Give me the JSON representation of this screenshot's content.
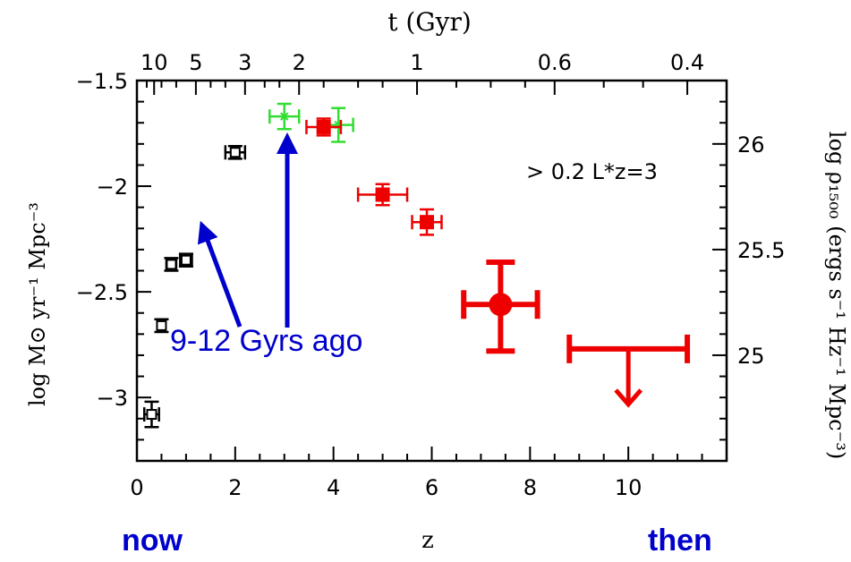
{
  "chart_data": {
    "type": "scatter",
    "title": "",
    "xlabel": "z",
    "ylabel": "log M⊙ yr⁻¹ Mpc⁻³",
    "ylabel_right": "log ρ₁₅₀₀ (ergs s⁻¹ Hz⁻¹ Mpc⁻³)",
    "xlabel_top": "t (Gyr)",
    "xlim": [
      0,
      12
    ],
    "ylim": [
      -3.3,
      -1.5
    ],
    "right_ylim": [
      24.5,
      26.3
    ],
    "x_ticks": [
      "0",
      "2",
      "4",
      "6",
      "8",
      "10"
    ],
    "y_ticks": [
      "-1.5",
      "-2",
      "-2.5",
      "-3"
    ],
    "right_ticks": [
      "26",
      "25.5",
      "25"
    ],
    "top_ticks": [
      {
        "label": "10",
        "z": 0.35
      },
      {
        "label": "5",
        "z": 1.2
      },
      {
        "label": "3",
        "z": 2.2
      },
      {
        "label": "2",
        "z": 3.3
      },
      {
        "label": "1",
        "z": 5.7
      },
      {
        "label": "0.6",
        "z": 8.5
      },
      {
        "label": "0.4",
        "z": 11.2
      }
    ],
    "annotation": "> 0.2 L*z=3",
    "series": [
      {
        "color": "#000000",
        "marker": "open-square",
        "points": [
          {
            "x": 0.3,
            "y": -3.08,
            "xerr": 0.15,
            "yerr": 0.06
          },
          {
            "x": 0.5,
            "y": -2.66,
            "xerr": 0.05,
            "yerr": 0.03
          },
          {
            "x": 0.7,
            "y": -2.37,
            "xerr": 0.1,
            "yerr": 0.03
          },
          {
            "x": 1.0,
            "y": -2.35,
            "xerr": 0.12,
            "yerr": 0.03
          },
          {
            "x": 2.0,
            "y": -1.84,
            "xerr": 0.2,
            "yerr": 0.03
          }
        ]
      },
      {
        "color": "#33dd33",
        "marker": "star",
        "points": [
          {
            "x": 3.0,
            "y": -1.67,
            "xerr": 0.3,
            "yerr": 0.06
          },
          {
            "x": 4.1,
            "y": -1.71,
            "xerr": 0.3,
            "yerr": 0.08
          }
        ]
      },
      {
        "color": "#ee0000",
        "marker": "filled-square",
        "points": [
          {
            "x": 3.8,
            "y": -1.72,
            "xerr": 0.35,
            "yerr": 0.04
          },
          {
            "x": 5.0,
            "y": -2.04,
            "xerr": 0.5,
            "yerr": 0.05
          },
          {
            "x": 5.9,
            "y": -2.17,
            "xerr": 0.3,
            "yerr": 0.06
          }
        ]
      },
      {
        "color": "#ee0000",
        "marker": "big-circle",
        "points": [
          {
            "x": 7.4,
            "y": -2.56,
            "xerr": 0.75,
            "yerr_up": 0.2,
            "yerr_down": 0.22
          }
        ]
      },
      {
        "color": "#ee0000",
        "marker": "upper-limit",
        "points": [
          {
            "x": 10.0,
            "y": -2.77,
            "xerr": 1.2
          }
        ]
      }
    ],
    "overlay_text": {
      "gyrs": "9-12 Gyrs ago",
      "now": "now",
      "then": "then"
    },
    "colors": {
      "black": "#000000",
      "green": "#33dd33",
      "red": "#ee0000",
      "blue": "#0000cc"
    }
  }
}
